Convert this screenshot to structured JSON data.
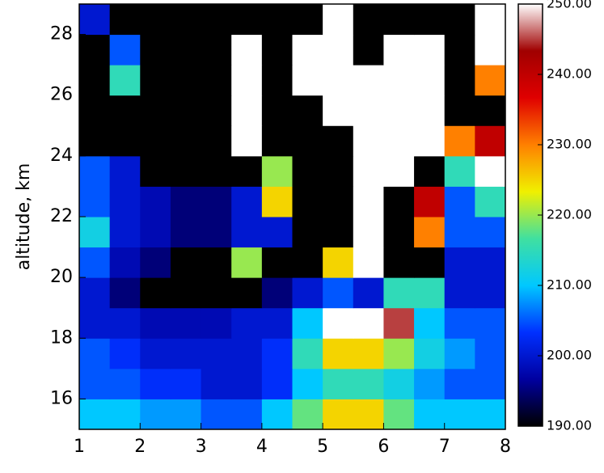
{
  "chart_data": {
    "type": "heatmap",
    "ylabel": "altitude, km",
    "xbins": [
      1,
      1.5,
      2,
      2.5,
      3,
      3.5,
      4,
      4.5,
      5,
      5.5,
      6,
      6.5,
      7,
      7.5,
      8
    ],
    "ybins": [
      15,
      16,
      17,
      18,
      19,
      20,
      21,
      22,
      23,
      24,
      25,
      26,
      27,
      28,
      29
    ],
    "values": [
      [
        210,
        210,
        208,
        208,
        205,
        205,
        210,
        218,
        225,
        225,
        218,
        210,
        210,
        210
      ],
      [
        205,
        205,
        203,
        203,
        200,
        200,
        203,
        210,
        215,
        215,
        212,
        208,
        205,
        205
      ],
      [
        205,
        203,
        200,
        200,
        200,
        200,
        203,
        215,
        225,
        225,
        220,
        212,
        208,
        205
      ],
      [
        200,
        200,
        198,
        198,
        198,
        200,
        200,
        210,
        250,
        250,
        245,
        210,
        205,
        205
      ],
      [
        200,
        195,
        190,
        190,
        190,
        190,
        195,
        200,
        205,
        200,
        215,
        215,
        200,
        200
      ],
      [
        205,
        198,
        195,
        190,
        190,
        220,
        190,
        190,
        225,
        250,
        190,
        190,
        200,
        200
      ],
      [
        212,
        200,
        198,
        195,
        195,
        200,
        200,
        190,
        190,
        250,
        190,
        230,
        205,
        205
      ],
      [
        205,
        200,
        198,
        195,
        195,
        200,
        225,
        190,
        190,
        250,
        190,
        240,
        205,
        215
      ],
      [
        205,
        200,
        190,
        190,
        190,
        190,
        220,
        190,
        190,
        250,
        250,
        190,
        215,
        250
      ],
      [
        190,
        190,
        190,
        190,
        190,
        250,
        190,
        190,
        190,
        250,
        250,
        250,
        230,
        240
      ],
      [
        190,
        190,
        190,
        190,
        190,
        250,
        190,
        190,
        250,
        250,
        250,
        250,
        190,
        190
      ],
      [
        190,
        215,
        190,
        190,
        190,
        250,
        190,
        250,
        250,
        250,
        250,
        250,
        190,
        230
      ],
      [
        190,
        205,
        190,
        190,
        190,
        250,
        190,
        250,
        250,
        190,
        250,
        250,
        190,
        250
      ],
      [
        200,
        190,
        190,
        190,
        190,
        190,
        190,
        190,
        250,
        190,
        190,
        190,
        190,
        250
      ]
    ],
    "xlim": [
      1,
      8
    ],
    "ylim": [
      15,
      29
    ],
    "xticks": [
      1,
      2,
      3,
      4,
      5,
      6,
      7,
      8
    ],
    "yticks": [
      16,
      18,
      20,
      22,
      24,
      26,
      28
    ],
    "zlim": [
      190,
      250
    ],
    "zticks": [
      {
        "value": 190,
        "label": "190.00"
      },
      {
        "value": 200,
        "label": "200.00"
      },
      {
        "value": 210,
        "label": "210.00"
      },
      {
        "value": 220,
        "label": "220.00"
      },
      {
        "value": 230,
        "label": "230.00"
      },
      {
        "value": 240,
        "label": "240.00"
      },
      {
        "value": 250,
        "label": "250.00"
      }
    ],
    "colors": [
      "#000000",
      "#0000a0",
      "#0030ff",
      "#00c8ff",
      "#40e0a0",
      "#f0f000",
      "#ff8000",
      "#e00000",
      "#a00000",
      "#ffffff"
    ]
  }
}
